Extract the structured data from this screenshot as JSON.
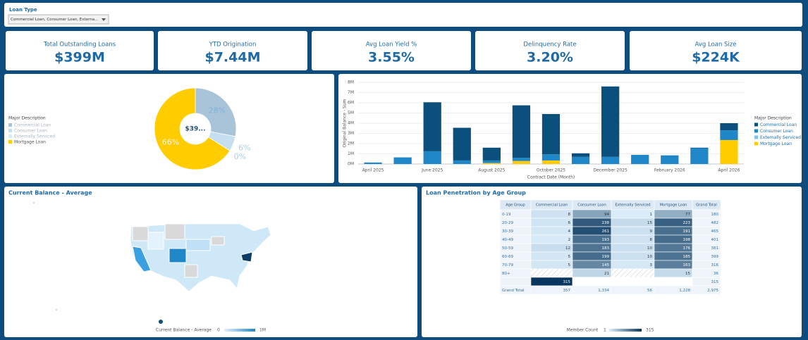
{
  "filter": {
    "label": "Loan Type",
    "value": "Commercial Loan, Consumer Loan, Externa..."
  },
  "kpis": [
    {
      "label": "Total Outstanding Loans",
      "value": "$399M"
    },
    {
      "label": "YTD Origination",
      "value": "$7.44M"
    },
    {
      "label": "Avg Loan Yield %",
      "value": "3.55%"
    },
    {
      "label": "Delinquency Rate",
      "value": "3.20%"
    },
    {
      "label": "Avg Loan Size",
      "value": "$224K"
    }
  ],
  "chart_data": [
    {
      "type": "pie",
      "donut": true,
      "center_label": "$39...",
      "legend_title": "Major Description",
      "legend": "left",
      "categories": [
        "Commercial Loan",
        "Consumer Loan",
        "Externally Serviced",
        "Mortgage Loan"
      ],
      "colors": [
        "#a9c4d8",
        "#c5dff0",
        "#d8ebf7",
        "#ffcc00"
      ],
      "values": [
        28,
        6,
        0,
        66
      ],
      "value_labels": [
        "28%",
        "6%",
        "0%",
        "66%"
      ]
    },
    {
      "type": "bar",
      "stacked": true,
      "y_label": "Original Balance - Sum",
      "x_label": "Contract Date (Month)",
      "legend_title": "Major Description",
      "legend": "right",
      "grid": true,
      "categories": [
        "April 2025",
        null,
        "June 2025",
        null,
        "August 2025",
        null,
        "October 2025",
        null,
        "December 2025",
        null,
        "February 2026",
        null,
        "April 2026"
      ],
      "ylim": [
        0,
        8000000
      ],
      "yticks": [
        {
          "value": 0,
          "label": "0M"
        },
        {
          "value": 1000000,
          "label": "1M"
        },
        {
          "value": 2000000,
          "label": "2M"
        },
        {
          "value": 3000000,
          "label": "3M"
        },
        {
          "value": 4000000,
          "label": "4M"
        },
        {
          "value": 5000000,
          "label": "5M"
        },
        {
          "value": 6000000,
          "label": "6M"
        },
        {
          "value": 7000000,
          "label": "7M"
        },
        {
          "value": 8000000,
          "label": "8M"
        }
      ],
      "series": [
        {
          "name": "Commercial Loan",
          "color": "#0b4f7c",
          "values": [
            0,
            0,
            4800000,
            3200000,
            1250000,
            5150000,
            3950000,
            350000,
            6900000,
            0,
            0,
            50000,
            700000
          ]
        },
        {
          "name": "Consumer Loan",
          "color": "#1f86c8",
          "values": [
            150000,
            650000,
            1250000,
            350000,
            250000,
            300000,
            600000,
            700000,
            700000,
            900000,
            850000,
            1550000,
            950000
          ]
        },
        {
          "name": "Externally Serviced",
          "color": "#7fc2ea",
          "values": [
            0,
            0,
            0,
            0,
            0,
            0,
            0,
            0,
            0,
            0,
            0,
            0,
            0
          ]
        },
        {
          "name": "Mortgage Loan",
          "color": "#ffcc00",
          "values": [
            0,
            0,
            0,
            0,
            100000,
            300000,
            350000,
            0,
            0,
            0,
            0,
            0,
            2350000
          ]
        }
      ]
    }
  ],
  "map": {
    "title": "Current Balance - Average",
    "legend_title": "Current Balance - Average",
    "legend_min": "0",
    "legend_max": "1M"
  },
  "table": {
    "title": "Loan Penetration by Age Group",
    "columns": [
      "Age Group",
      "Commercial Loan",
      "Consumer Loan",
      "Externally Serviced",
      "Mortgage Loan",
      "Grand Total"
    ],
    "rows": [
      [
        "0-19",
        "8",
        "94",
        "1",
        "77",
        "180"
      ],
      [
        "20-29",
        "6",
        "238",
        "15",
        "223",
        "482"
      ],
      [
        "30-39",
        "4",
        "261",
        "9",
        "191",
        "465"
      ],
      [
        "40-49",
        "2",
        "193",
        "8",
        "198",
        "401"
      ],
      [
        "50-59",
        "12",
        "183",
        "10",
        "176",
        "381"
      ],
      [
        "60-69",
        "5",
        "199",
        "10",
        "185",
        "399"
      ],
      [
        "70-79",
        "5",
        "145",
        "3",
        "163",
        "316"
      ],
      [
        "80+",
        null,
        "21",
        null,
        "15",
        "36"
      ],
      [
        null,
        "315",
        null,
        null,
        null,
        "315"
      ],
      [
        "Grand Total",
        "357",
        "1,334",
        "56",
        "1,228",
        "2,975"
      ]
    ],
    "legend_title": "Member Count",
    "legend_min": "1",
    "legend_max": "315"
  }
}
